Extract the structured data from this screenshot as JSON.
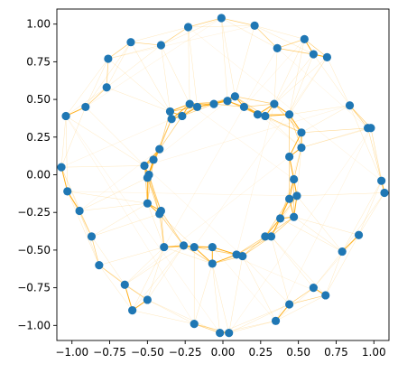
{
  "chart_data": {
    "type": "scatter",
    "title": "",
    "xlabel": "",
    "ylabel": "",
    "xlim": [
      -1.1,
      1.1
    ],
    "ylim": [
      -1.1,
      1.1
    ],
    "xticks": [
      -1.0,
      -0.75,
      -0.5,
      -0.25,
      0.0,
      0.25,
      0.5,
      0.75,
      1.0
    ],
    "yticks": [
      -1.0,
      -0.75,
      -0.5,
      -0.25,
      0.0,
      0.25,
      0.5,
      0.75,
      1.0
    ],
    "tick_format_decimals": 2,
    "grid": false,
    "legend": "none",
    "marker_color": "#1f77b4",
    "edge_color": "#ffa500",
    "series": [
      {
        "points": [
          [
            -0.01,
            1.04
          ],
          [
            0.21,
            0.99
          ],
          [
            -0.23,
            0.98
          ],
          [
            0.36,
            0.84
          ],
          [
            0.54,
            0.9
          ],
          [
            0.6,
            0.8
          ],
          [
            0.69,
            0.78
          ],
          [
            -0.61,
            0.88
          ],
          [
            -0.41,
            0.86
          ],
          [
            -0.76,
            0.77
          ],
          [
            -0.77,
            0.58
          ],
          [
            -0.91,
            0.45
          ],
          [
            -1.04,
            0.39
          ],
          [
            -1.07,
            0.05
          ],
          [
            -1.03,
            -0.11
          ],
          [
            -0.95,
            -0.24
          ],
          [
            -0.87,
            -0.41
          ],
          [
            -0.82,
            -0.6
          ],
          [
            -0.65,
            -0.73
          ],
          [
            -0.6,
            -0.9
          ],
          [
            -0.5,
            -0.83
          ],
          [
            -0.19,
            -0.99
          ],
          [
            -0.02,
            -1.05
          ],
          [
            0.04,
            -1.05
          ],
          [
            0.35,
            -0.97
          ],
          [
            0.44,
            -0.86
          ],
          [
            0.6,
            -0.75
          ],
          [
            0.68,
            -0.8
          ],
          [
            0.79,
            -0.51
          ],
          [
            0.9,
            -0.4
          ],
          [
            1.05,
            -0.04
          ],
          [
            1.07,
            -0.12
          ],
          [
            0.96,
            0.31
          ],
          [
            0.98,
            0.31
          ],
          [
            0.84,
            0.46
          ],
          [
            0.08,
            0.52
          ],
          [
            0.03,
            0.49
          ],
          [
            -0.06,
            0.47
          ],
          [
            -0.17,
            0.45
          ],
          [
            -0.22,
            0.47
          ],
          [
            -0.27,
            0.39
          ],
          [
            -0.35,
            0.42
          ],
          [
            -0.34,
            0.37
          ],
          [
            -0.42,
            0.17
          ],
          [
            -0.46,
            0.1
          ],
          [
            -0.52,
            0.06
          ],
          [
            -0.49,
            0.0
          ],
          [
            -0.5,
            -0.02
          ],
          [
            -0.5,
            -0.19
          ],
          [
            -0.42,
            -0.26
          ],
          [
            -0.41,
            -0.24
          ],
          [
            -0.39,
            -0.48
          ],
          [
            -0.26,
            -0.47
          ],
          [
            -0.19,
            -0.48
          ],
          [
            -0.07,
            -0.48
          ],
          [
            -0.07,
            -0.59
          ],
          [
            0.09,
            -0.53
          ],
          [
            0.13,
            -0.54
          ],
          [
            0.28,
            -0.41
          ],
          [
            0.32,
            -0.41
          ],
          [
            0.38,
            -0.29
          ],
          [
            0.47,
            -0.28
          ],
          [
            0.44,
            -0.16
          ],
          [
            0.49,
            -0.14
          ],
          [
            0.44,
            0.12
          ],
          [
            0.47,
            -0.03
          ],
          [
            0.52,
            0.18
          ],
          [
            0.52,
            0.28
          ],
          [
            0.44,
            0.4
          ],
          [
            0.34,
            0.47
          ],
          [
            0.28,
            0.39
          ],
          [
            0.23,
            0.4
          ],
          [
            0.14,
            0.45
          ]
        ]
      }
    ]
  }
}
